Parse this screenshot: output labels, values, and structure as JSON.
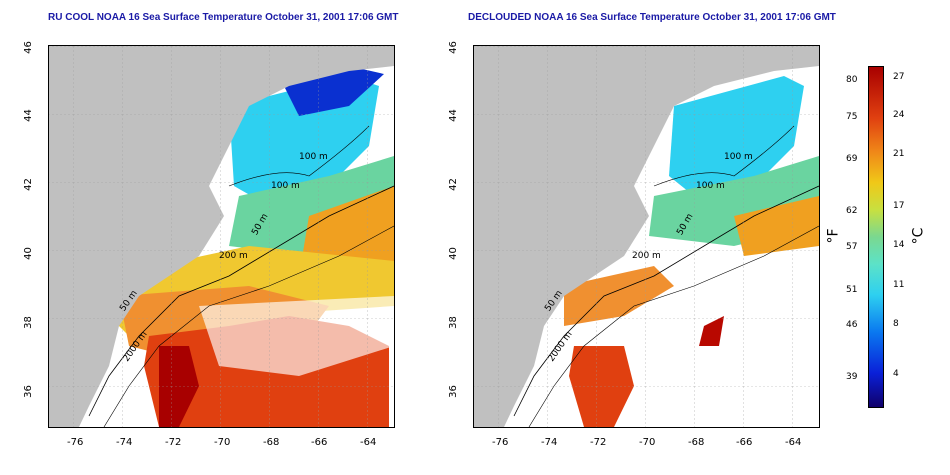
{
  "maps": {
    "left": {
      "title": "RU COOL NOAA 16 Sea Surface Temperature October 31, 2001 17:06 GMT"
    },
    "right": {
      "title": "DECLOUDED NOAA 16 Sea Surface Temperature October 31, 2001 17:06 GMT"
    }
  },
  "axes": {
    "x_ticks": [
      "-76",
      "-74",
      "-72",
      "-70",
      "-68",
      "-66",
      "-64"
    ],
    "y_ticks": [
      "46",
      "44",
      "42",
      "40",
      "38",
      "36"
    ]
  },
  "contours": {
    "m100a": "100 m",
    "m100b": "100 m",
    "m50": "50 m",
    "m200": "200 m",
    "m2000": "2000 m",
    "m50b": "50 m"
  },
  "colorbar": {
    "fahrenheit_label": "°F",
    "celsius_label": "°C",
    "f_ticks": [
      "80",
      "75",
      "69",
      "62",
      "57",
      "51",
      "46",
      "39"
    ],
    "c_ticks": [
      "27",
      "24",
      "21",
      "17",
      "14",
      "11",
      "8",
      "4"
    ]
  },
  "colors": {
    "land": "#c0c0c0",
    "ocean_blank": "#ffffff",
    "title": "#1a1aa6"
  }
}
